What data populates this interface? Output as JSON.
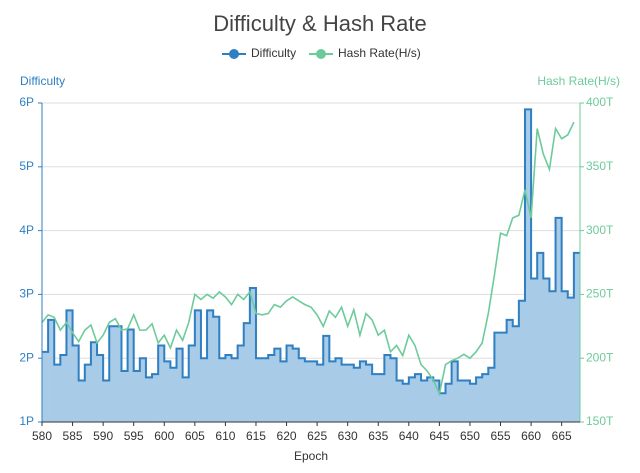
{
  "chart_data": {
    "type": "step-line",
    "title": "Difficulty & Hash Rate",
    "x_label": "Epoch",
    "y_label": "Difficulty",
    "y2_label": "Hash Rate(H/s)",
    "x": [
      580,
      581,
      582,
      583,
      584,
      585,
      586,
      587,
      588,
      589,
      590,
      591,
      592,
      593,
      594,
      595,
      596,
      597,
      598,
      599,
      600,
      601,
      602,
      603,
      604,
      605,
      606,
      607,
      608,
      609,
      610,
      611,
      612,
      613,
      614,
      615,
      616,
      617,
      618,
      619,
      620,
      621,
      622,
      623,
      624,
      625,
      626,
      627,
      628,
      629,
      630,
      631,
      632,
      633,
      634,
      635,
      636,
      637,
      638,
      639,
      640,
      641,
      642,
      643,
      644,
      645,
      646,
      647,
      648,
      649,
      650,
      651,
      652,
      653,
      654,
      655,
      656,
      657,
      658,
      659,
      660,
      661,
      662,
      663,
      664,
      665,
      666,
      667
    ],
    "xlim": [
      580,
      668
    ],
    "xticks": [
      580,
      585,
      590,
      595,
      600,
      605,
      610,
      615,
      620,
      625,
      630,
      635,
      640,
      645,
      650,
      655,
      660,
      665
    ],
    "ylim": [
      1,
      6
    ],
    "yticks": [
      {
        "value": 1,
        "label": "1P"
      },
      {
        "value": 2,
        "label": "2P"
      },
      {
        "value": 3,
        "label": "3P"
      },
      {
        "value": 4,
        "label": "4P"
      },
      {
        "value": 5,
        "label": "5P"
      },
      {
        "value": 6,
        "label": "6P"
      }
    ],
    "y2lim": [
      150,
      400
    ],
    "y2ticks": [
      {
        "value": 150,
        "label": "150T"
      },
      {
        "value": 200,
        "label": "200T"
      },
      {
        "value": 250,
        "label": "250T"
      },
      {
        "value": 300,
        "label": "300T"
      },
      {
        "value": 350,
        "label": "350T"
      },
      {
        "value": 400,
        "label": "400T"
      }
    ],
    "grid": true,
    "series": [
      {
        "name": "Difficulty",
        "color": "#2f7fc1",
        "fill": "#a8cbe8",
        "values": [
          2.1,
          2.6,
          1.9,
          2.05,
          2.75,
          2.2,
          1.65,
          1.9,
          2.25,
          2.05,
          1.65,
          2.5,
          2.5,
          1.8,
          2.45,
          1.8,
          2.0,
          1.7,
          1.75,
          2.2,
          1.95,
          1.85,
          2.15,
          1.7,
          2.2,
          2.75,
          2.0,
          2.75,
          2.65,
          2.0,
          2.05,
          2.0,
          2.2,
          2.55,
          3.1,
          2.0,
          2.0,
          2.05,
          2.15,
          1.95,
          2.2,
          2.15,
          2.0,
          1.95,
          1.95,
          1.9,
          2.35,
          1.95,
          2.0,
          1.9,
          1.9,
          1.85,
          1.95,
          1.9,
          1.75,
          1.75,
          2.05,
          2.0,
          1.65,
          1.6,
          1.7,
          1.75,
          1.65,
          1.7,
          1.65,
          1.45,
          1.6,
          1.95,
          1.65,
          1.65,
          1.6,
          1.7,
          1.75,
          1.85,
          2.4,
          2.4,
          2.6,
          2.5,
          2.9,
          5.9,
          3.25,
          3.65,
          3.25,
          3.05,
          4.2,
          3.05,
          2.95,
          3.65
        ]
      },
      {
        "name": "Hash Rate(H/s)",
        "color": "#6dcb9b",
        "axis": "y2",
        "values": [
          228,
          234,
          232,
          222,
          228,
          220,
          213,
          222,
          226,
          212,
          218,
          228,
          231,
          222,
          223,
          234,
          222,
          222,
          227,
          212,
          218,
          208,
          222,
          214,
          228,
          250,
          246,
          250,
          247,
          252,
          248,
          242,
          250,
          246,
          252,
          235,
          234,
          235,
          242,
          240,
          245,
          248,
          245,
          242,
          240,
          234,
          225,
          237,
          232,
          240,
          225,
          238,
          218,
          235,
          230,
          218,
          222,
          205,
          210,
          202,
          218,
          210,
          195,
          190,
          183,
          172,
          195,
          198,
          200,
          203,
          200,
          205,
          212,
          235,
          265,
          298,
          296,
          310,
          312,
          332,
          310,
          380,
          360,
          348,
          380,
          372,
          375,
          385
        ]
      }
    ]
  }
}
